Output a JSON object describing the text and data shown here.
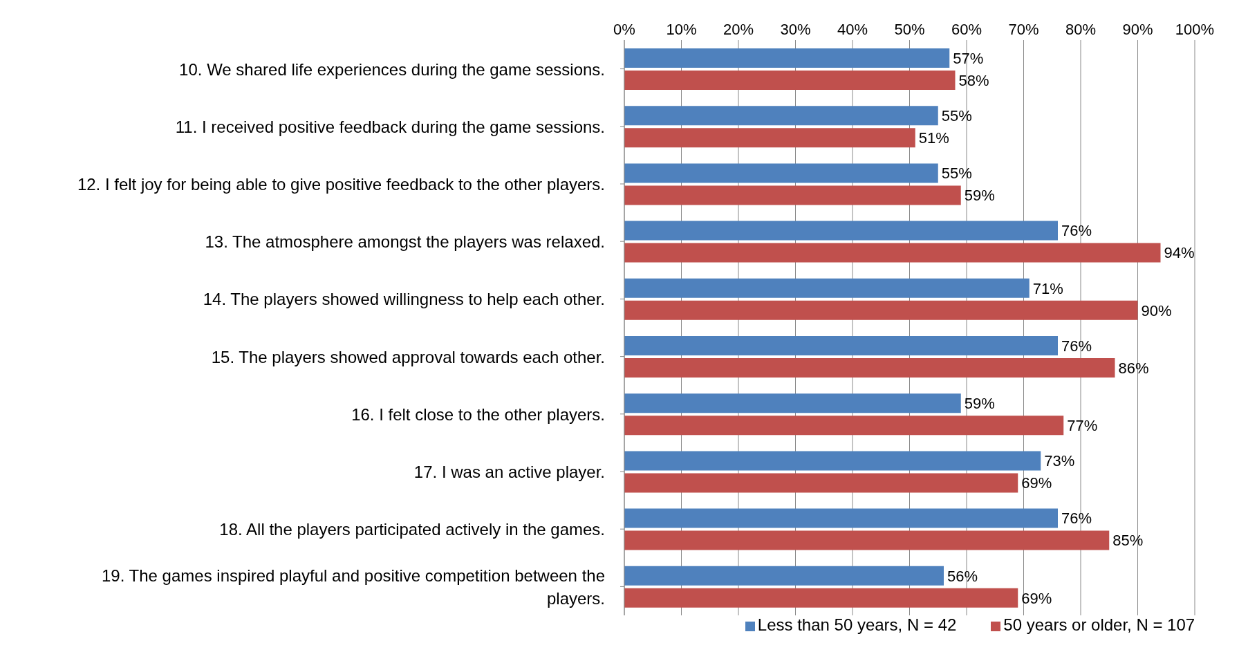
{
  "chart_data": {
    "type": "bar",
    "orientation": "horizontal",
    "categories": [
      "10. We shared life experiences during the game sessions.",
      "11. I received positive feedback during the game sessions.",
      "12. I felt joy for being able to give positive feedback to the other players.",
      "13. The atmosphere amongst the players was relaxed.",
      "14. The players showed willingness to help each other.",
      "15. The players showed approval towards each other.",
      "16. I felt close to the other players.",
      "17. I was an active player.",
      "18. All the players participated actively in the games.",
      "19. The games inspired playful and positive competition between the players."
    ],
    "series": [
      {
        "name": "Less than 50 years, N = 42",
        "color": "#4f81bd",
        "values": [
          57,
          55,
          55,
          76,
          71,
          76,
          59,
          73,
          76,
          56
        ],
        "value_labels": [
          "57%",
          "55%",
          "55%",
          "76%",
          "71%",
          "76%",
          "59%",
          "73%",
          "76%",
          "56%"
        ]
      },
      {
        "name": "50 years or older, N = 107",
        "color": "#c0504d",
        "values": [
          58,
          51,
          59,
          94,
          90,
          86,
          77,
          69,
          85,
          69
        ],
        "value_labels": [
          "58%",
          "51%",
          "59%",
          "94%",
          "90%",
          "86%",
          "77%",
          "69%",
          "85%",
          "69%"
        ]
      }
    ],
    "xlim": [
      0,
      100
    ],
    "xticks": [
      {
        "value": 0,
        "label": "0%"
      },
      {
        "value": 10,
        "label": "10%"
      },
      {
        "value": 20,
        "label": "20%"
      },
      {
        "value": 30,
        "label": "30%"
      },
      {
        "value": 40,
        "label": "40%"
      },
      {
        "value": 50,
        "label": "50%"
      },
      {
        "value": 60,
        "label": "60%"
      },
      {
        "value": 70,
        "label": "70%"
      },
      {
        "value": 80,
        "label": "80%"
      },
      {
        "value": 90,
        "label": "90%"
      },
      {
        "value": 100,
        "label": "100%"
      }
    ],
    "grid": "x",
    "legend": "bottom"
  }
}
